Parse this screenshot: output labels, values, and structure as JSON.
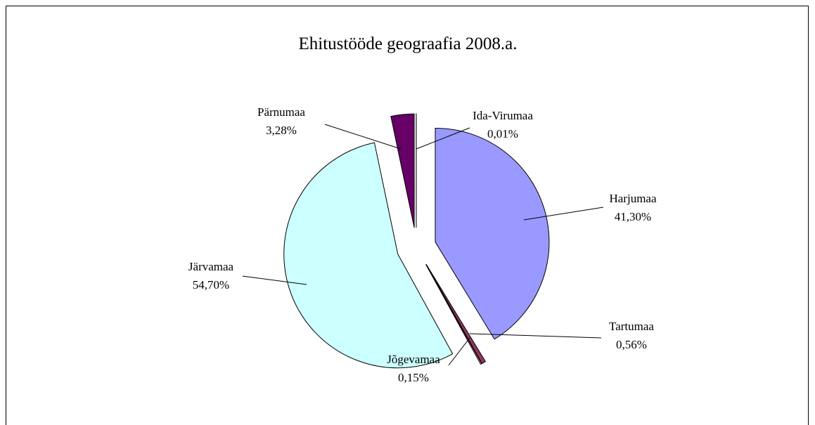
{
  "chart_data": {
    "type": "pie",
    "title": "Ehitustööde geograafia 2008.a.",
    "categories": [
      "Harjumaa",
      "Tartumaa",
      "Jõgevamaa",
      "Järvamaa",
      "Pärnumaa",
      "Ida-Virumaa"
    ],
    "values": [
      41.3,
      0.56,
      0.15,
      54.7,
      3.28,
      0.01
    ],
    "value_labels": [
      "41,30%",
      "0,56%",
      "0,15%",
      "54,70%",
      "3,28%",
      "0,01%"
    ],
    "colors": [
      "#9999ff",
      "#993366",
      "#ffffcc",
      "#ccffff",
      "#660066",
      "#ff8080"
    ]
  }
}
